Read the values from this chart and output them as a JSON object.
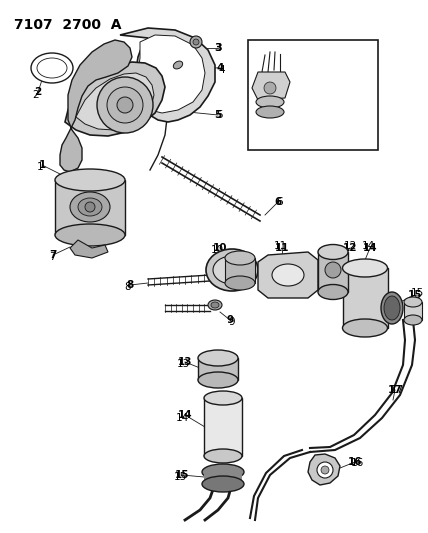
{
  "title": "7107 2700 A",
  "bg_color": "#ffffff",
  "line_color": "#1a1a1a",
  "label_color": "#000000",
  "title_fontsize": 10,
  "label_fontsize": 7.5,
  "fig_w": 4.28,
  "fig_h": 5.33,
  "dpi": 100
}
